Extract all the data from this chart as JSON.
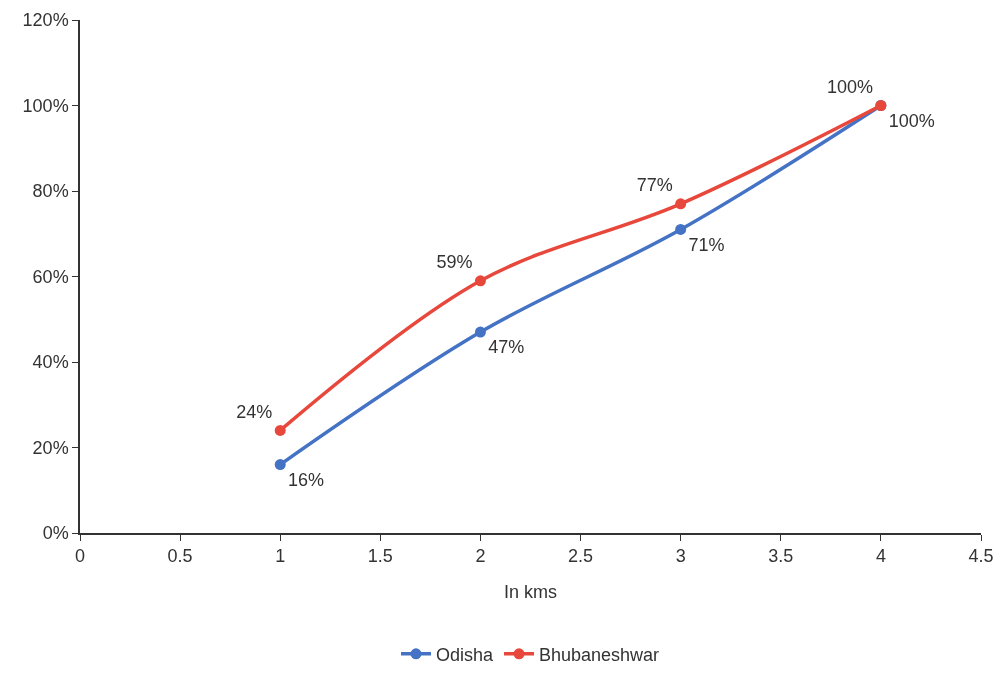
{
  "chart_data": {
    "type": "line",
    "xlabel": "In kms",
    "x": [
      1,
      2,
      3,
      4
    ],
    "series": [
      {
        "name": "Odisha",
        "color": "#4472c4",
        "values": [
          16,
          47,
          71,
          100
        ],
        "value_labels": [
          "16%",
          "47%",
          "71%",
          "100%"
        ]
      },
      {
        "name": "Bhubaneshwar",
        "color": "#e8473b",
        "values": [
          24,
          59,
          77,
          100
        ],
        "value_labels": [
          "24%",
          "59%",
          "77%",
          "100%"
        ]
      }
    ],
    "xlim": [
      0,
      4.5
    ],
    "xticks": [
      0,
      0.5,
      1,
      1.5,
      2,
      2.5,
      3,
      3.5,
      4,
      4.5
    ],
    "ylim": [
      0,
      120
    ],
    "yticks": [
      {
        "value": 0,
        "label": "0%"
      },
      {
        "value": 20,
        "label": "20%"
      },
      {
        "value": 40,
        "label": "40%"
      },
      {
        "value": 60,
        "label": "60%"
      },
      {
        "value": 80,
        "label": "80%"
      },
      {
        "value": 100,
        "label": "100%"
      },
      {
        "value": 120,
        "label": "120%"
      }
    ],
    "grid": false,
    "legend": "bottom",
    "marker": "circle",
    "line_style": "solid"
  }
}
